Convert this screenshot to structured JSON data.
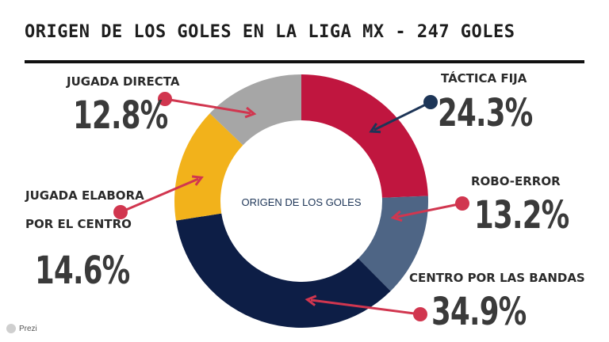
{
  "title": "ORIGEN DE LOS GOLES EN LA LIGA MX - 247 GOLES",
  "brand": "Prezi",
  "chart_data": {
    "type": "pie",
    "center_label": "ORIGEN DE LOS GOLES",
    "slices": [
      {
        "label": "TÁCTICA FIJA",
        "value_text": "24.3%",
        "value": 24.3,
        "color": "#c0163f"
      },
      {
        "label": "ROBO-ERROR",
        "value_text": "13.2%",
        "value": 13.2,
        "color": "#4e6585"
      },
      {
        "label": "CENTRO POR LAS BANDAS",
        "value_text": "34.9%",
        "value": 34.9,
        "color": "#0d1e46"
      },
      {
        "label": "JUGADA ELABORA POR EL CENTRO",
        "label_line1": "JUGADA ELABORA",
        "label_line2": "POR EL CENTRO",
        "value_text": "14.6%",
        "value": 14.6,
        "color": "#f2b21b"
      },
      {
        "label": "JUGADA DIRECTA",
        "value_text": "12.8%",
        "value": 12.8,
        "color": "#a6a6a6"
      }
    ],
    "arrow_colors": {
      "red": "#d1364f",
      "navy": "#1d3557"
    }
  }
}
